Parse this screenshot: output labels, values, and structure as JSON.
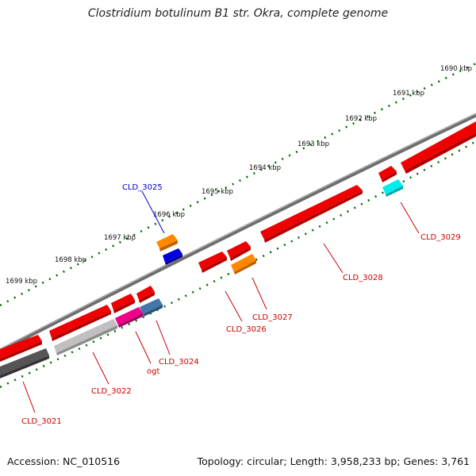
{
  "title": "Clostridium botulinum B1 str. Okra, complete genome",
  "footer": {
    "accession": "Accession: NC_010516",
    "summary": "Topology: circular; Length: 3,958,233 bp; Genes: 3,761"
  },
  "ticks": [
    {
      "label": "1690 kbp"
    },
    {
      "label": "1691 kbp"
    },
    {
      "label": "1692 kbp"
    },
    {
      "label": "1693 kbp"
    },
    {
      "label": "1694 kbp"
    },
    {
      "label": "1695 kbp"
    },
    {
      "label": "1696 kbp"
    },
    {
      "label": "1697 kbp"
    },
    {
      "label": "1698 kbp"
    },
    {
      "label": "1699 kbp"
    }
  ],
  "gene_labels": [
    {
      "text": "CLD_3025",
      "color": "#0000cc"
    },
    {
      "text": "CLD_3029",
      "color": "#cc0000"
    },
    {
      "text": "CLD_3028",
      "color": "#cc0000"
    },
    {
      "text": "CLD_3027",
      "color": "#cc0000"
    },
    {
      "text": "CLD_3026",
      "color": "#cc0000"
    },
    {
      "text": "CLD_3024",
      "color": "#cc0000"
    },
    {
      "text": "ogt",
      "color": "#cc0000"
    },
    {
      "text": "CLD_3022",
      "color": "#cc0000"
    },
    {
      "text": "CLD_3021",
      "color": "#cc0000"
    }
  ],
  "colors": {
    "forward_cds": "#ee0000",
    "backbone": "#808080",
    "tick_mark": "#006600",
    "orange_feature": "#ff8800",
    "blue_feature": "#0000dd",
    "cyan_feature": "#00eeee",
    "magenta_feature": "#ee0088",
    "steelblue_feature": "#4477aa",
    "lightgray_feature": "#c0c0c0",
    "darkgray_feature": "#555555"
  }
}
